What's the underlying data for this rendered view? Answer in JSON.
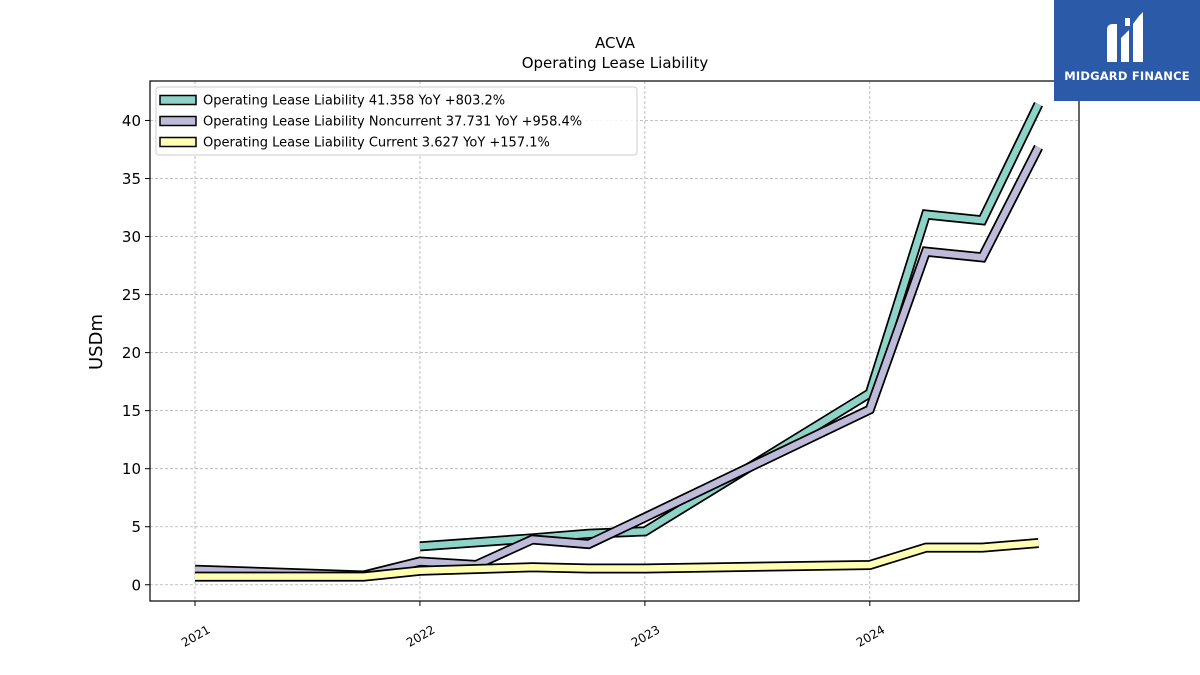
{
  "chart_data": {
    "type": "line",
    "title": "ACVA",
    "subtitle": "Operating Lease Liability",
    "xlabel": "",
    "ylabel": "USDm",
    "xlim": [
      2020.8,
      2024.93
    ],
    "ylim": [
      -1.4,
      43.4
    ],
    "yticks": [
      0,
      5,
      10,
      15,
      20,
      25,
      30,
      35,
      40
    ],
    "xticks": [
      2021,
      2022,
      2023,
      2024
    ],
    "grid": true,
    "legend_position": "top-left",
    "series": [
      {
        "name": "Operating Lease Liability",
        "legend": "Operating Lease Liability  41.358 YoY +803.2%",
        "color": "#8dd3c7",
        "x": [
          2022.0,
          2022.5,
          2022.75,
          2023.0,
          2024.0,
          2024.25,
          2024.5,
          2024.75
        ],
        "y": [
          3.3,
          4.0,
          4.4,
          4.6,
          16.5,
          31.9,
          31.4,
          41.4
        ]
      },
      {
        "name": "Operating Lease Liability Noncurrent",
        "legend": "Operating Lease Liability Noncurrent  37.731 YoY +958.4%",
        "color": "#bebada",
        "x": [
          2021.0,
          2021.75,
          2022.0,
          2022.25,
          2022.5,
          2022.75,
          2023.0,
          2024.0,
          2024.25,
          2024.5,
          2024.75
        ],
        "y": [
          1.3,
          0.8,
          2.0,
          1.7,
          3.9,
          3.5,
          5.8,
          15.1,
          28.7,
          28.2,
          37.7
        ]
      },
      {
        "name": "Operating Lease Liability Current",
        "legend": "Operating Lease Liability Current  3.627 YoY +157.1%",
        "color": "#ffffb3",
        "x": [
          2021.0,
          2021.75,
          2022.0,
          2022.5,
          2022.75,
          2023.0,
          2024.0,
          2024.25,
          2024.5,
          2024.75
        ],
        "y": [
          0.7,
          0.7,
          1.2,
          1.5,
          1.4,
          1.4,
          1.7,
          3.2,
          3.2,
          3.6
        ]
      }
    ]
  },
  "logo": {
    "text": "MIDGARD FINANCE",
    "background": "#2b5aa9"
  }
}
